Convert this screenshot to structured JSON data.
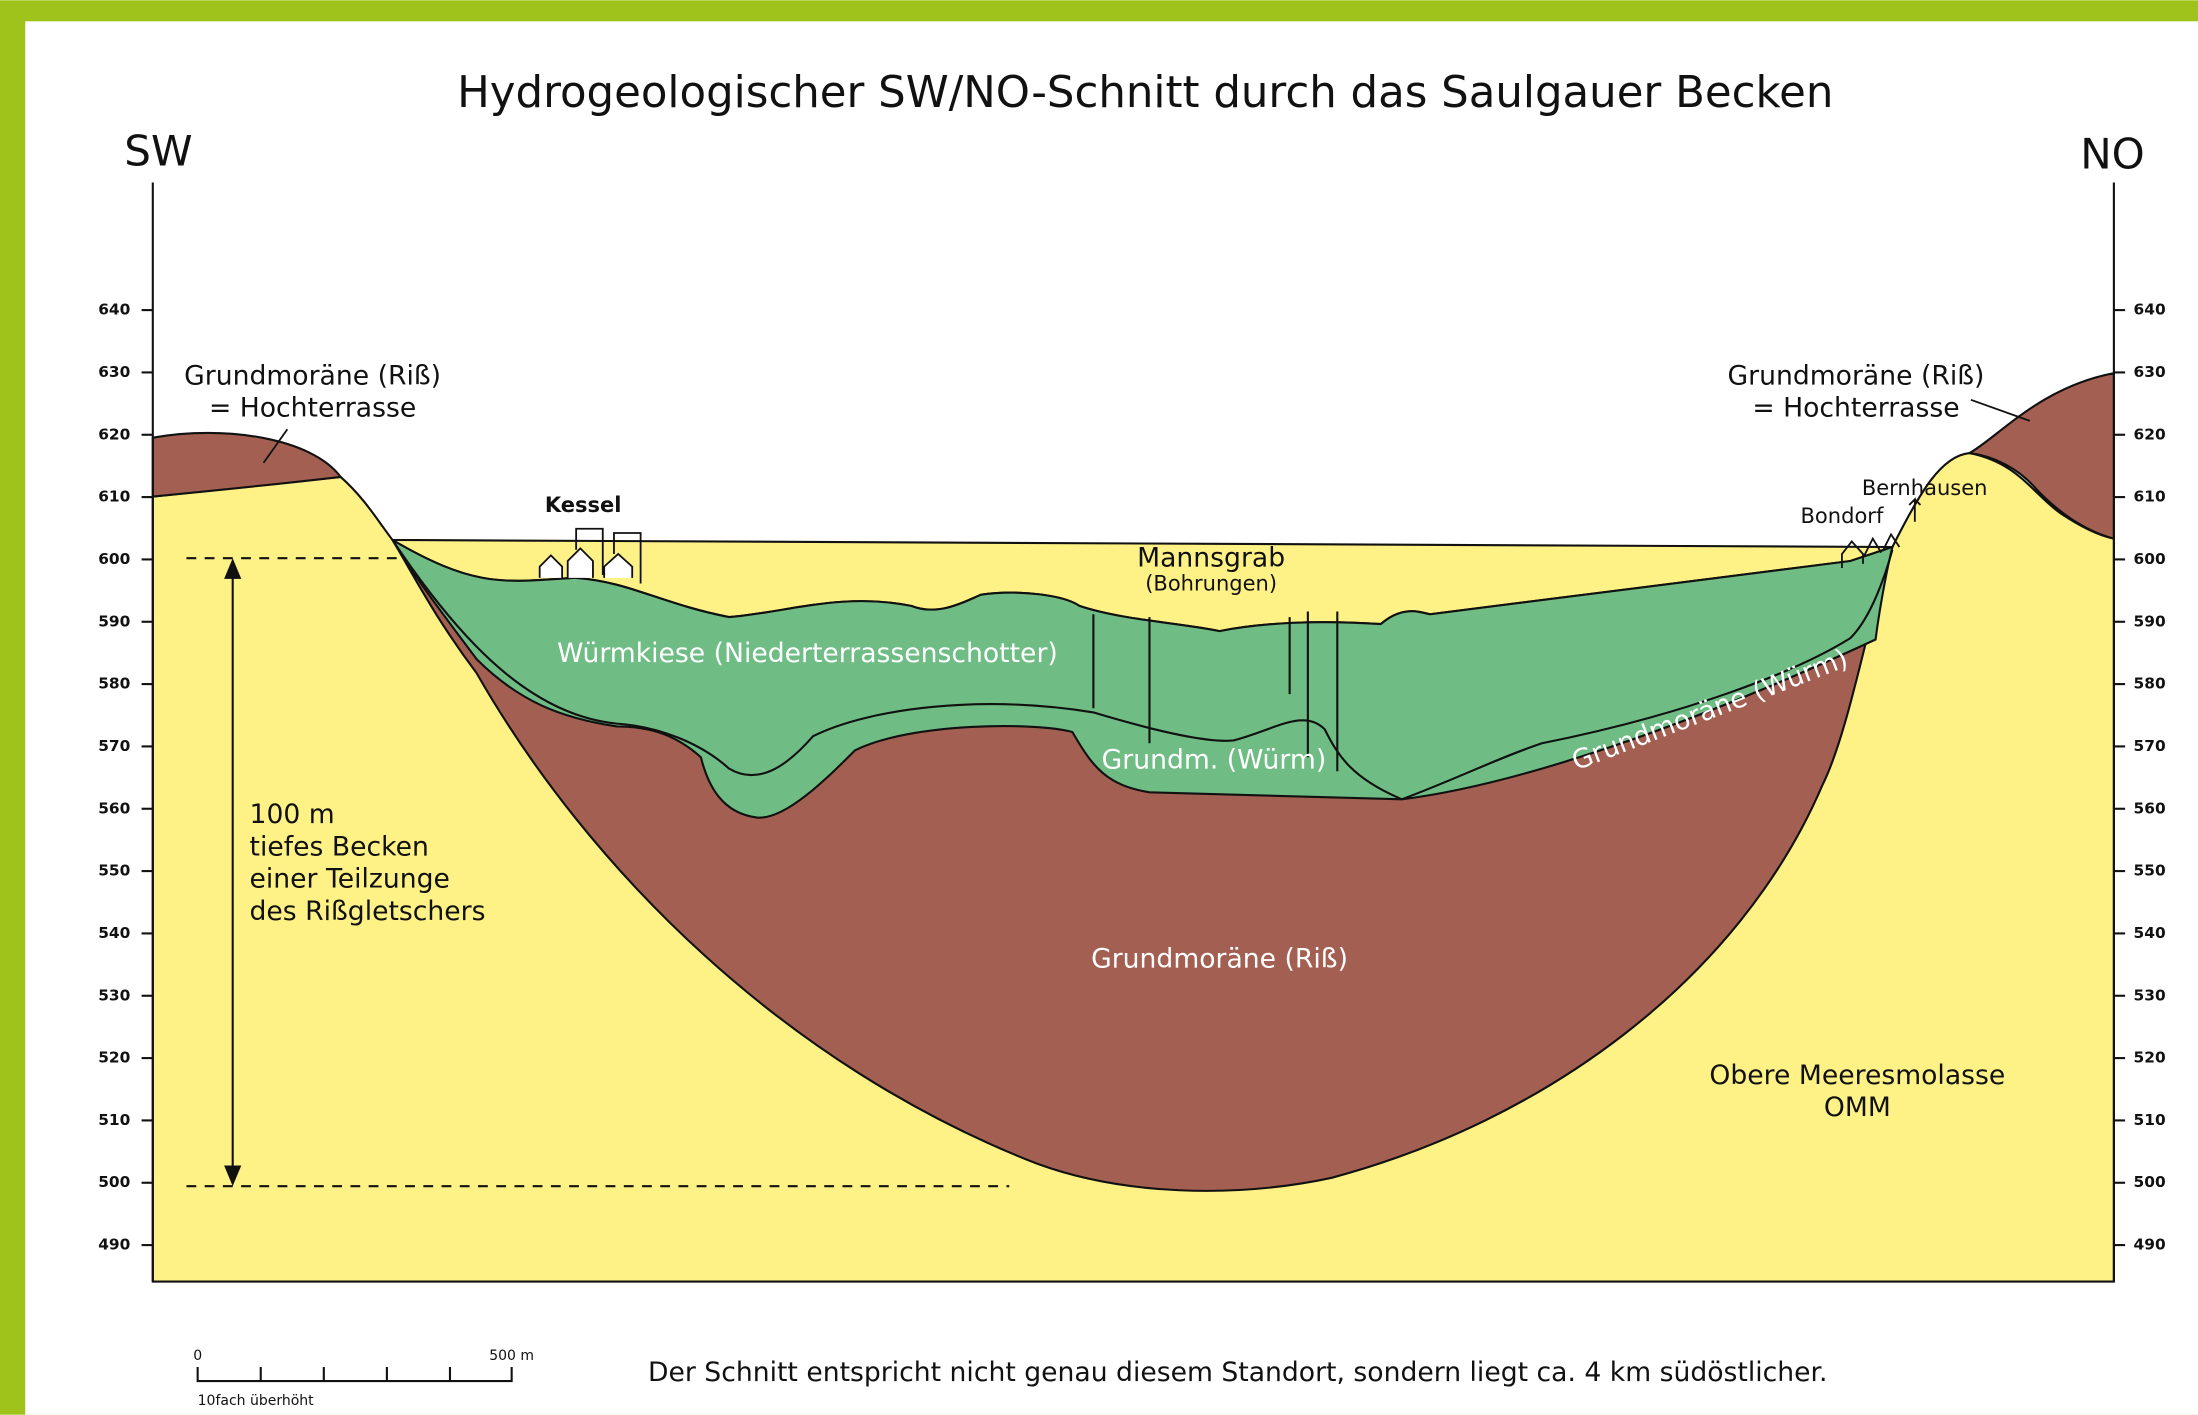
{
  "title": "Hydrogeologischer SW/NO-Schnitt durch das Saulgauer Becken",
  "direction_labels": {
    "left": "SW",
    "right": "NO"
  },
  "elevation_ticks": [
    640,
    630,
    620,
    610,
    600,
    590,
    580,
    570,
    560,
    550,
    540,
    530,
    520,
    510,
    500,
    490
  ],
  "layer_labels": {
    "riss_left": [
      "Grundmoräne (Riß)",
      "= Hochterrasse"
    ],
    "riss_right": [
      "Grundmoräne (Riß)",
      "= Hochterrasse"
    ],
    "wuermkiese": "Würmkiese (Niederterrassenschotter)",
    "grundm_wuerm": "Grundm. (Würm)",
    "grundmoraene_wuerm": "Grundmoräne (Würm)",
    "grundmoraene_riss": "Grundmoräne (Riß)",
    "omm": [
      "Obere Meeresmolasse",
      "OMM"
    ]
  },
  "place_labels": {
    "kessel": "Kessel",
    "mannsgrab": "Mannsgrab",
    "bohrungen": "(Bohrungen)",
    "bondorf": "Bondorf",
    "bernhausen": "Bernhausen"
  },
  "depth_annotation": [
    "100 m",
    "tiefes Becken",
    "einer Teilzunge",
    "des Rißgletschers"
  ],
  "scale_bar": {
    "start": "0",
    "end": "500 m",
    "note": "10fach überhöht"
  },
  "footnote": "Der Schnitt entspricht nicht genau diesem Standort, sondern liegt ca. 4 km südöstlicher."
}
